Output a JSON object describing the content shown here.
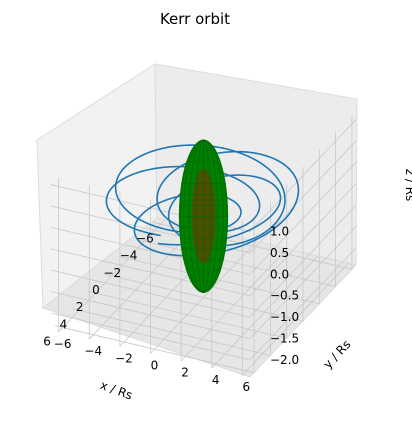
{
  "chart_data": {
    "type": "3d-line",
    "title": "Kerr orbit",
    "xlabel": "x / Rs",
    "ylabel": "y / Rs",
    "zlabel": "z / Rs",
    "xlim": [
      -6.5,
      6.5
    ],
    "ylim": [
      -6.5,
      6.5
    ],
    "zlim": [
      -2.4,
      1.2
    ],
    "x_ticks": [
      -6,
      -4,
      -2,
      0,
      2,
      4,
      6
    ],
    "y_ticks": [
      -6,
      -4,
      -2,
      0,
      2,
      4,
      6
    ],
    "z_ticks": [
      -2.0,
      -1.5,
      -1.0,
      -0.5,
      0.0,
      0.5,
      1.0
    ],
    "x_tick_labels": [
      "−6",
      "−4",
      "−2",
      "0",
      "2",
      "4",
      "6"
    ],
    "y_tick_labels": [
      "−6",
      "−4",
      "−2",
      "0",
      "2",
      "4",
      "6"
    ],
    "z_tick_labels": [
      "−2.0",
      "−1.5",
      "−1.0",
      "−0.5",
      "0.0",
      "0.5",
      "1.0"
    ],
    "grid": true,
    "series": [
      {
        "kind": "orbit-line",
        "color": "#1f77b4",
        "r_min": 2.0,
        "r_max": 5.6,
        "z_amplitude": 0.45,
        "z_center": -0.3
      },
      {
        "kind": "horizon-sphere",
        "color": "#008000",
        "inner_color": "#8b2500",
        "center": [
          0,
          0,
          -0.5
        ],
        "radius_xy": 1.0,
        "radius_z": 1.7
      }
    ]
  }
}
